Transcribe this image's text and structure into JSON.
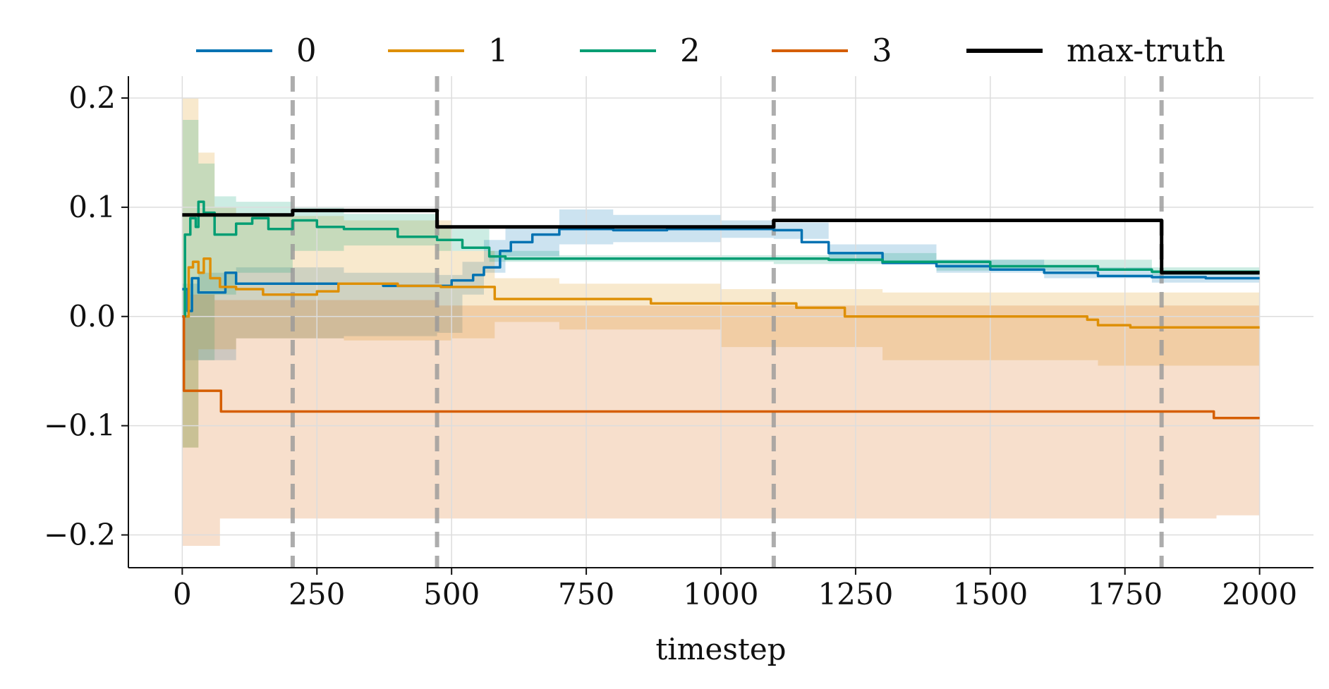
{
  "chart_data": {
    "type": "line",
    "title": "",
    "xlabel": "timestep",
    "ylabel": "",
    "xlim": [
      -100,
      2100
    ],
    "ylim": [
      -0.23,
      0.22
    ],
    "grid": true,
    "legend_placement": "top, outside plot",
    "x_ticks": [
      0,
      250,
      500,
      750,
      1000,
      1250,
      1500,
      1750,
      2000
    ],
    "x_tick_labels": [
      "0",
      "250",
      "500",
      "750",
      "1000",
      "1250",
      "1500",
      "1750",
      "2000"
    ],
    "y_ticks": [
      0.2,
      0.1,
      0.0,
      -0.1,
      -0.2
    ],
    "y_tick_labels": [
      "0.2",
      "0.1",
      "0.0",
      "−0.1",
      "−0.2"
    ],
    "vlines": [
      205,
      473,
      1098,
      1818
    ],
    "series": [
      {
        "name": "0",
        "color": "#0072b2",
        "points": [
          [
            0,
            0.025
          ],
          [
            10,
            0.005
          ],
          [
            18,
            0.035
          ],
          [
            30,
            0.022
          ],
          [
            80,
            0.04
          ],
          [
            100,
            0.03
          ],
          [
            200,
            0.03
          ],
          [
            300,
            0.03
          ],
          [
            373,
            0.028
          ],
          [
            473,
            0.028
          ],
          [
            500,
            0.033
          ],
          [
            540,
            0.038
          ],
          [
            560,
            0.045
          ],
          [
            590,
            0.06
          ],
          [
            610,
            0.068
          ],
          [
            650,
            0.075
          ],
          [
            700,
            0.08
          ],
          [
            750,
            0.08
          ],
          [
            800,
            0.079
          ],
          [
            900,
            0.08
          ],
          [
            1000,
            0.08
          ],
          [
            1098,
            0.079
          ],
          [
            1150,
            0.068
          ],
          [
            1200,
            0.058
          ],
          [
            1300,
            0.049
          ],
          [
            1400,
            0.046
          ],
          [
            1500,
            0.043
          ],
          [
            1600,
            0.04
          ],
          [
            1700,
            0.037
          ],
          [
            1800,
            0.036
          ],
          [
            1900,
            0.035
          ],
          [
            2000,
            0.035
          ]
        ],
        "band_upper": [
          [
            0,
            0.03
          ],
          [
            30,
            0.04
          ],
          [
            100,
            0.045
          ],
          [
            300,
            0.04
          ],
          [
            473,
            0.038
          ],
          [
            520,
            0.05
          ],
          [
            560,
            0.07
          ],
          [
            600,
            0.083
          ],
          [
            700,
            0.098
          ],
          [
            800,
            0.093
          ],
          [
            1000,
            0.088
          ],
          [
            1098,
            0.086
          ],
          [
            1200,
            0.066
          ],
          [
            1400,
            0.052
          ],
          [
            1600,
            0.045
          ],
          [
            1800,
            0.042
          ],
          [
            2000,
            0.04
          ]
        ],
        "band_lower": [
          [
            0,
            -0.04
          ],
          [
            30,
            -0.04
          ],
          [
            100,
            -0.02
          ],
          [
            300,
            -0.018
          ],
          [
            473,
            -0.015
          ],
          [
            520,
            0.02
          ],
          [
            560,
            0.04
          ],
          [
            600,
            0.055
          ],
          [
            700,
            0.066
          ],
          [
            800,
            0.068
          ],
          [
            1000,
            0.072
          ],
          [
            1098,
            0.071
          ],
          [
            1200,
            0.05
          ],
          [
            1400,
            0.04
          ],
          [
            1600,
            0.035
          ],
          [
            1800,
            0.031
          ],
          [
            2000,
            0.029
          ]
        ]
      },
      {
        "name": "1",
        "color": "#de8f05",
        "points": [
          [
            0,
            0.0
          ],
          [
            12,
            0.045
          ],
          [
            20,
            0.05
          ],
          [
            30,
            0.04
          ],
          [
            40,
            0.053
          ],
          [
            52,
            0.035
          ],
          [
            70,
            0.027
          ],
          [
            100,
            0.025
          ],
          [
            150,
            0.02
          ],
          [
            250,
            0.023
          ],
          [
            290,
            0.03
          ],
          [
            400,
            0.028
          ],
          [
            480,
            0.027
          ],
          [
            570,
            0.027
          ],
          [
            580,
            0.016
          ],
          [
            700,
            0.016
          ],
          [
            870,
            0.012
          ],
          [
            1100,
            0.012
          ],
          [
            1140,
            0.008
          ],
          [
            1230,
            0.0
          ],
          [
            1400,
            0.0
          ],
          [
            1680,
            -0.003
          ],
          [
            1700,
            -0.008
          ],
          [
            1760,
            -0.01
          ],
          [
            2000,
            -0.01
          ]
        ],
        "band_upper": [
          [
            0,
            0.2
          ],
          [
            30,
            0.15
          ],
          [
            60,
            0.1
          ],
          [
            100,
            0.092
          ],
          [
            300,
            0.088
          ],
          [
            500,
            0.06
          ],
          [
            580,
            0.035
          ],
          [
            700,
            0.03
          ],
          [
            1000,
            0.025
          ],
          [
            1300,
            0.022
          ],
          [
            1700,
            0.022
          ],
          [
            2000,
            0.022
          ]
        ],
        "band_lower": [
          [
            0,
            -0.12
          ],
          [
            30,
            -0.03
          ],
          [
            100,
            -0.02
          ],
          [
            300,
            -0.022
          ],
          [
            500,
            -0.02
          ],
          [
            580,
            -0.005
          ],
          [
            700,
            -0.012
          ],
          [
            1000,
            -0.028
          ],
          [
            1300,
            -0.04
          ],
          [
            1700,
            -0.045
          ],
          [
            2000,
            -0.045
          ]
        ]
      },
      {
        "name": "2",
        "color": "#029e73",
        "points": [
          [
            0,
            0.0
          ],
          [
            5,
            0.075
          ],
          [
            15,
            0.09
          ],
          [
            25,
            0.082
          ],
          [
            30,
            0.105
          ],
          [
            40,
            0.095
          ],
          [
            60,
            0.075
          ],
          [
            100,
            0.085
          ],
          [
            130,
            0.09
          ],
          [
            160,
            0.08
          ],
          [
            205,
            0.088
          ],
          [
            250,
            0.082
          ],
          [
            300,
            0.08
          ],
          [
            400,
            0.073
          ],
          [
            473,
            0.07
          ],
          [
            520,
            0.063
          ],
          [
            570,
            0.055
          ],
          [
            600,
            0.053
          ],
          [
            800,
            0.053
          ],
          [
            1000,
            0.053
          ],
          [
            1098,
            0.053
          ],
          [
            1200,
            0.052
          ],
          [
            1300,
            0.05
          ],
          [
            1500,
            0.046
          ],
          [
            1700,
            0.043
          ],
          [
            1800,
            0.041
          ],
          [
            2000,
            0.041
          ]
        ],
        "band_upper": [
          [
            0,
            0.18
          ],
          [
            30,
            0.14
          ],
          [
            60,
            0.11
          ],
          [
            100,
            0.105
          ],
          [
            205,
            0.1
          ],
          [
            300,
            0.094
          ],
          [
            473,
            0.08
          ],
          [
            570,
            0.06
          ],
          [
            700,
            0.056
          ],
          [
            1098,
            0.056
          ],
          [
            1200,
            0.058
          ],
          [
            1400,
            0.052
          ],
          [
            1800,
            0.045
          ],
          [
            2000,
            0.045
          ]
        ],
        "band_lower": [
          [
            0,
            -0.12
          ],
          [
            30,
            -0.04
          ],
          [
            60,
            0.02
          ],
          [
            100,
            0.04
          ],
          [
            205,
            0.06
          ],
          [
            300,
            0.065
          ],
          [
            473,
            0.06
          ],
          [
            570,
            0.05
          ],
          [
            700,
            0.05
          ],
          [
            1098,
            0.048
          ],
          [
            1200,
            0.048
          ],
          [
            1400,
            0.042
          ],
          [
            1800,
            0.038
          ],
          [
            2000,
            0.038
          ]
        ]
      },
      {
        "name": "3",
        "color": "#d55e00",
        "points": [
          [
            0,
            0.0
          ],
          [
            3,
            -0.068
          ],
          [
            65,
            -0.068
          ],
          [
            72,
            -0.087
          ],
          [
            500,
            -0.087
          ],
          [
            1000,
            -0.087
          ],
          [
            1910,
            -0.087
          ],
          [
            1915,
            -0.093
          ],
          [
            2000,
            -0.093
          ]
        ],
        "band_upper": [
          [
            0,
            0.0
          ],
          [
            15,
            0.02
          ],
          [
            60,
            0.015
          ],
          [
            200,
            0.015
          ],
          [
            473,
            0.01
          ],
          [
            600,
            0.01
          ],
          [
            1000,
            0.01
          ],
          [
            1500,
            0.01
          ],
          [
            2000,
            0.01
          ]
        ],
        "band_lower": [
          [
            0,
            -0.21
          ],
          [
            60,
            -0.21
          ],
          [
            70,
            -0.185
          ],
          [
            500,
            -0.185
          ],
          [
            1000,
            -0.185
          ],
          [
            1500,
            -0.185
          ],
          [
            1900,
            -0.185
          ],
          [
            1920,
            -0.182
          ],
          [
            2000,
            -0.182
          ]
        ]
      },
      {
        "name": "max-truth",
        "color": "#000000",
        "points": [
          [
            0,
            0.093
          ],
          [
            205,
            0.093
          ],
          [
            205,
            0.097
          ],
          [
            473,
            0.097
          ],
          [
            473,
            0.082
          ],
          [
            1098,
            0.082
          ],
          [
            1098,
            0.088
          ],
          [
            1818,
            0.088
          ],
          [
            1818,
            0.04
          ],
          [
            2000,
            0.04
          ]
        ]
      }
    ]
  }
}
